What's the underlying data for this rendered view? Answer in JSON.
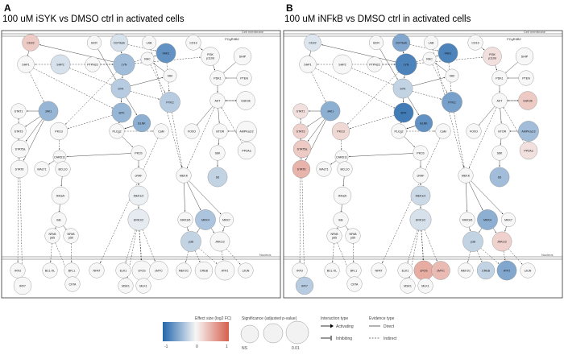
{
  "panels": [
    {
      "letter": "A",
      "title": "100 uM iSYK vs DMSO ctrl in activated cells"
    },
    {
      "letter": "B",
      "title": "100 uM iNFkB vs DMSO ctrl in activated cells"
    }
  ],
  "compartments": {
    "membrane": "Cell membrane",
    "nucleus": "Nucleus"
  },
  "nodes": [
    {
      "id": "CD22",
      "label": "CD22"
    },
    {
      "id": "BCR",
      "label": "BCR"
    },
    {
      "id": "CD79",
      "label": "CD79a/b"
    },
    {
      "id": "LAB",
      "label": "LAB"
    },
    {
      "id": "FAK1",
      "label": "FAK1"
    },
    {
      "id": "CD19",
      "label": "CD19"
    },
    {
      "id": "FCGR2B",
      "label": "FCgRIIB2"
    },
    {
      "id": "SHP1",
      "label": "SHP1"
    },
    {
      "id": "SHP2",
      "label": "SHP2"
    },
    {
      "id": "PTPN22",
      "label": "PTPN22"
    },
    {
      "id": "LYN",
      "label": "LYN"
    },
    {
      "id": "RAC",
      "label": "RAC"
    },
    {
      "id": "PI3K",
      "label": "PI3K p110d"
    },
    {
      "id": "SHIP",
      "label": "SHIP"
    },
    {
      "id": "SYK",
      "label": "SYK"
    },
    {
      "id": "VAV",
      "label": "VAV"
    },
    {
      "id": "PDK1",
      "label": "PDK1"
    },
    {
      "id": "PTEN",
      "label": "PTEN"
    },
    {
      "id": "PYK2",
      "label": "PYK2"
    },
    {
      "id": "STAT1",
      "label": "STAT1"
    },
    {
      "id": "JAK1",
      "label": "JAK1"
    },
    {
      "id": "BTK",
      "label": "BTK"
    },
    {
      "id": "BLNK",
      "label": "BLNK"
    },
    {
      "id": "AKT",
      "label": "AKT"
    },
    {
      "id": "GSK3B",
      "label": "GSK3b"
    },
    {
      "id": "STAT3",
      "label": "STAT3"
    },
    {
      "id": "PKCD",
      "label": "PKCd"
    },
    {
      "id": "PLCG2",
      "label": "PLCg2"
    },
    {
      "id": "CaM",
      "label": "CaM"
    },
    {
      "id": "FOXO",
      "label": "FOXO"
    },
    {
      "id": "MTOR",
      "label": "mTOR"
    },
    {
      "id": "AMPK",
      "label": "AMPKa1/2"
    },
    {
      "id": "STAT5",
      "label": "STAT5a"
    },
    {
      "id": "PP2AA",
      "label": "PP2Aa"
    },
    {
      "id": "CARD11",
      "label": "CARD11"
    },
    {
      "id": "PKC",
      "label": "PKCb"
    },
    {
      "id": "S6K",
      "label": "S6K"
    },
    {
      "id": "STAT6",
      "label": "STAT6"
    },
    {
      "id": "MALT1",
      "label": "MALT1"
    },
    {
      "id": "BCL10",
      "label": "BCL10"
    },
    {
      "id": "CRAF",
      "label": "cRAF"
    },
    {
      "id": "MEKK",
      "label": "MEKK"
    },
    {
      "id": "S6",
      "label": "S6"
    },
    {
      "id": "IKK",
      "label": "IKKa/b"
    },
    {
      "id": "MEK",
      "label": "MEK1/2"
    },
    {
      "id": "IKB",
      "label": "IkB"
    },
    {
      "id": "ERK",
      "label": "ERK1/2"
    },
    {
      "id": "MKK3",
      "label": "MKK3/6"
    },
    {
      "id": "MKK4",
      "label": "MKK4"
    },
    {
      "id": "MKK7",
      "label": "MKK7"
    },
    {
      "id": "NFKBP65",
      "label": "NFkB p65"
    },
    {
      "id": "NFKBP50",
      "label": "NFkB p50"
    },
    {
      "id": "P38",
      "label": "p38"
    },
    {
      "id": "JNK",
      "label": "JNK1/2"
    },
    {
      "id": "IRF3",
      "label": "IRF3"
    },
    {
      "id": "BCLXL",
      "label": "BCL-XL"
    },
    {
      "id": "BFL1",
      "label": "BFL1"
    },
    {
      "id": "NFAT",
      "label": "NFAT"
    },
    {
      "id": "ELK",
      "label": "ELK1"
    },
    {
      "id": "CFOS",
      "label": "cFOS"
    },
    {
      "id": "CMYC",
      "label": "cMYC"
    },
    {
      "id": "MEF2C",
      "label": "MEF2C"
    },
    {
      "id": "CREB",
      "label": "CREB"
    },
    {
      "id": "ATF2",
      "label": "ATF2"
    },
    {
      "id": "CJUN",
      "label": "cJUN"
    },
    {
      "id": "IRF7",
      "label": "IRF7"
    },
    {
      "id": "CIITA",
      "label": "CIITA"
    },
    {
      "id": "MSK1",
      "label": "MSK1"
    },
    {
      "id": "MLK1",
      "label": "MLK1"
    }
  ],
  "effects": {
    "A": {
      "CD22": 0.3,
      "CD79": -0.15,
      "FAK1": -0.7,
      "SHP2": -0.15,
      "LYN": -0.4,
      "SYK": -0.3,
      "PYK2": -0.3,
      "JAK1": -0.45,
      "BTK": -0.45,
      "BLNK": -0.5,
      "S6": -0.25,
      "P38": -0.25,
      "MKK4": -0.35,
      "ERK": -0.08,
      "MEK": -0.05
    },
    "B": {
      "CD22": -0.12,
      "CD79": -0.55,
      "FAK1": -0.8,
      "LYN": -0.8,
      "PI3K": 0.15,
      "SYK": -0.25,
      "PYK2": -0.6,
      "JAK1": -0.5,
      "BTK": -0.85,
      "BLNK": -0.7,
      "GSK3B": 0.3,
      "STAT1": 0.15,
      "STAT3": 0.25,
      "STAT5": 0.3,
      "STAT6": 0.45,
      "PKCD": 0.2,
      "AMPK": -0.4,
      "PP2AA": 0.15,
      "S6": -0.4,
      "MEK": -0.2,
      "ERK": -0.15,
      "P38": -0.25,
      "MKK4": -0.5,
      "JNK": 0.25,
      "IRF7": -0.3,
      "CFOS": 0.5,
      "CMYC": 0.4,
      "CREB": -0.25,
      "ATF2": -0.55
    }
  },
  "legend": {
    "colorbar_title": "Effect size (log2 FC)",
    "tick_min": "-1",
    "tick_mid": "0",
    "tick_max": "1",
    "size_title": "Significance (adjusted p-value)",
    "size_tick_low": "NS",
    "size_tick_high": "0.01",
    "interaction_title": "Interaction type",
    "interaction_activating": "Activating",
    "interaction_inhibiting": "Inhibiting",
    "evidence_title": "Evidence type",
    "evidence_direct": "Direct",
    "evidence_indirect": "Indirect"
  },
  "colors": {
    "negative": "#2166ac",
    "neutral": "#f7f7f7",
    "positive": "#d6604d"
  }
}
